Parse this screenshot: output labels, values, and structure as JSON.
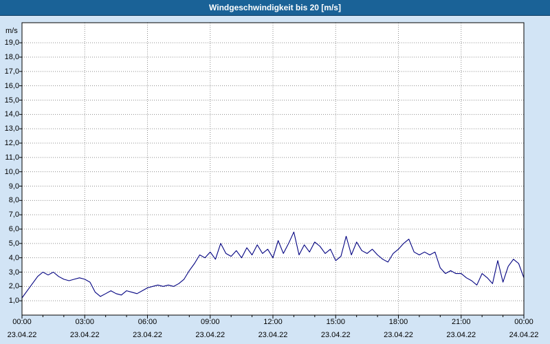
{
  "window": {
    "title": "Windgeschwindigkeit bis 20 [m/s]"
  },
  "colors": {
    "background": "#d2e4f5",
    "titlebar": "#1a6297",
    "plot_background": "#ffffff",
    "line": "#000080",
    "grid": "#8c8c8c"
  },
  "chart_data": {
    "type": "line",
    "title": "Windgeschwindigkeit bis 20 [m/s]",
    "xlabel": "",
    "ylabel": "m/s",
    "unit_label": "m/s",
    "ylim": [
      0,
      20.4
    ],
    "x_hours": [
      0,
      24
    ],
    "minutes_per_point": 15,
    "grid": true,
    "legend": "none",
    "y_tick_labels": [
      "1,0",
      "2,0",
      "3,0",
      "4,0",
      "5,0",
      "6,0",
      "7,0",
      "8,0",
      "9,0",
      "10,0",
      "11,0",
      "12,0",
      "13,0",
      "14,0",
      "15,0",
      "16,0",
      "17,0",
      "18,0",
      "19,0"
    ],
    "x_tick_times": [
      "00:00",
      "03:00",
      "06:00",
      "09:00",
      "12:00",
      "15:00",
      "18:00",
      "21:00",
      "00:00"
    ],
    "x_tick_dates": [
      "23.04.22",
      "23.04.22",
      "23.04.22",
      "23.04.22",
      "23.04.22",
      "23.04.22",
      "23.04.22",
      "23.04.22",
      "24.04.22"
    ],
    "series_name": "Windgeschwindigkeit",
    "values": [
      1.2,
      1.7,
      2.2,
      2.7,
      3.0,
      2.8,
      3.0,
      2.7,
      2.5,
      2.4,
      2.5,
      2.6,
      2.5,
      2.3,
      1.6,
      1.3,
      1.5,
      1.7,
      1.5,
      1.4,
      1.7,
      1.6,
      1.5,
      1.7,
      1.9,
      2.0,
      2.1,
      2.0,
      2.1,
      2.0,
      2.2,
      2.5,
      3.1,
      3.6,
      4.2,
      4.0,
      4.4,
      3.9,
      5.0,
      4.3,
      4.1,
      4.5,
      4.0,
      4.7,
      4.2,
      4.9,
      4.3,
      4.6,
      4.0,
      5.2,
      4.3,
      5.0,
      5.8,
      4.2,
      4.9,
      4.4,
      5.1,
      4.8,
      4.3,
      4.6,
      3.8,
      4.1,
      5.5,
      4.2,
      5.1,
      4.5,
      4.3,
      4.6,
      4.2,
      3.9,
      3.7,
      4.3,
      4.6,
      5.0,
      5.3,
      4.4,
      4.2,
      4.4,
      4.2,
      4.4,
      3.3,
      2.9,
      3.1,
      2.9,
      2.9,
      2.6,
      2.4,
      2.1,
      2.9,
      2.6,
      2.2,
      3.8,
      2.3,
      3.4,
      3.9,
      3.6,
      2.6
    ]
  }
}
